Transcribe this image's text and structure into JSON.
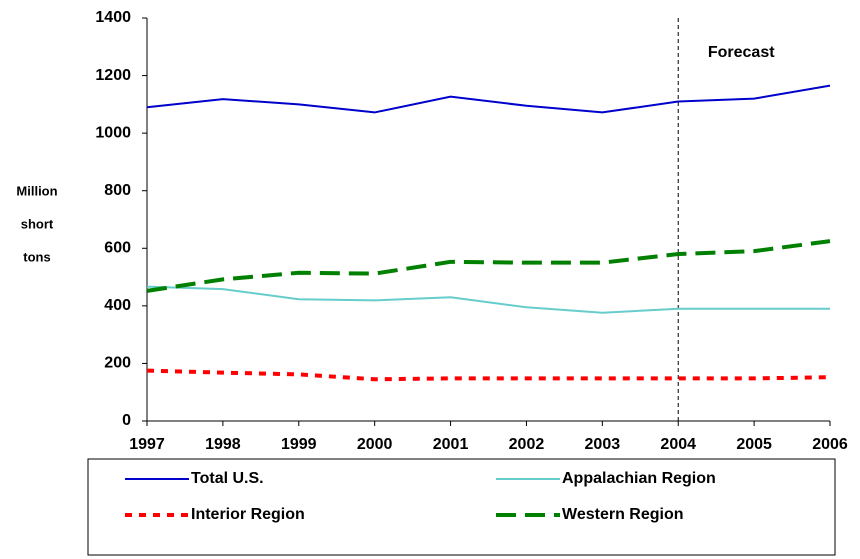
{
  "chart_data": {
    "type": "line",
    "ylabel": [
      "Million",
      "short",
      "tons"
    ],
    "x": [
      1997,
      1998,
      1999,
      2000,
      2001,
      2002,
      2003,
      2004,
      2005,
      2006
    ],
    "xlim": [
      1997,
      2006
    ],
    "xticks": [
      1997,
      1998,
      1999,
      2000,
      2001,
      2002,
      2003,
      2004,
      2005,
      2006
    ],
    "ylim": [
      0,
      1400
    ],
    "yticks": [
      0,
      200,
      400,
      600,
      800,
      1000,
      1200,
      1400
    ],
    "grid": false,
    "annotation": {
      "text": "Forecast",
      "x": 2004
    },
    "legend": "bottom",
    "series": [
      {
        "name": "Total U.S.",
        "color": "#0000cc",
        "style": "solid",
        "values": [
          1090,
          1118,
          1100,
          1072,
          1127,
          1095,
          1072,
          1110,
          1120,
          1165
        ]
      },
      {
        "name": "Appalachian Region",
        "color": "#66cccc",
        "style": "solid",
        "values": [
          467,
          458,
          423,
          419,
          430,
          395,
          376,
          390,
          390,
          390
        ]
      },
      {
        "name": "Interior Region",
        "color": "#ff0000",
        "style": "dotted",
        "values": [
          175,
          168,
          162,
          145,
          148,
          148,
          148,
          148,
          148,
          152
        ]
      },
      {
        "name": "Western Region",
        "color": "#008000",
        "style": "dashed",
        "values": [
          452,
          492,
          515,
          512,
          553,
          550,
          550,
          580,
          590,
          625
        ]
      }
    ]
  }
}
